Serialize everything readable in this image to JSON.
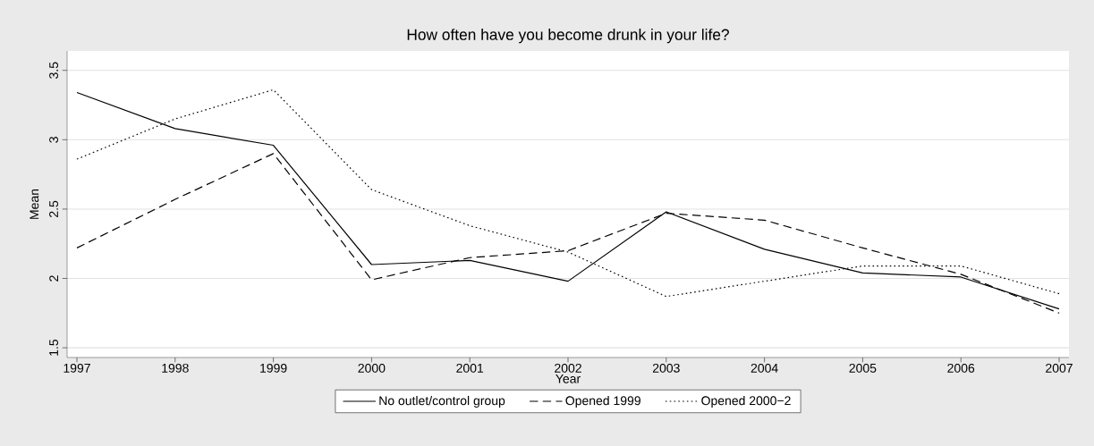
{
  "chart_data": {
    "type": "line",
    "title": "How often have you become drunk in your life?",
    "xlabel": "Year",
    "ylabel": "Mean",
    "x": [
      1997,
      1998,
      1999,
      2000,
      2001,
      2002,
      2003,
      2004,
      2005,
      2006,
      2007
    ],
    "series": [
      {
        "name": "No outlet/control group",
        "color": "#000000",
        "line_style": "solid",
        "values": [
          3.34,
          3.08,
          2.96,
          2.1,
          2.13,
          1.98,
          2.48,
          2.21,
          2.04,
          2.01,
          1.78
        ]
      },
      {
        "name": "Opened 1999",
        "color": "#000000",
        "line_style": "dashed",
        "values": [
          2.22,
          2.57,
          2.9,
          1.99,
          2.15,
          2.2,
          2.47,
          2.42,
          2.22,
          2.03,
          1.75
        ]
      },
      {
        "name": "Opened 2000−2",
        "color": "#000000",
        "line_style": "dotted",
        "values": [
          2.86,
          3.15,
          3.36,
          2.64,
          2.38,
          2.19,
          1.87,
          1.98,
          2.09,
          2.09,
          1.89
        ]
      }
    ],
    "xlim": [
      1996.9,
      2007.1
    ],
    "ylim": [
      1.43,
      3.64
    ],
    "xticks": [
      1997,
      1998,
      1999,
      2000,
      2001,
      2002,
      2003,
      2004,
      2005,
      2006,
      2007
    ],
    "yticks": [
      1.5,
      2,
      2.5,
      3,
      3.5
    ],
    "grid": "y",
    "legend": "bottom",
    "marker": "none"
  }
}
